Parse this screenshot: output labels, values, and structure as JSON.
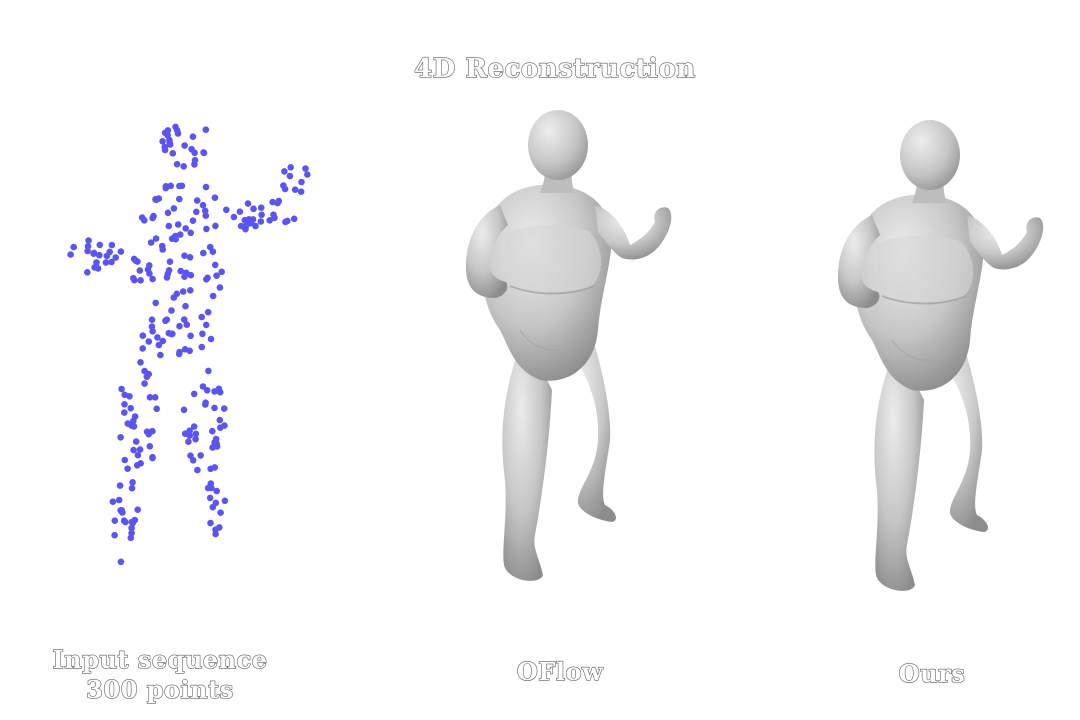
{
  "title": "4D Reconstruction",
  "panels": [
    {
      "caption_lines": [
        "Input sequence",
        "300 points"
      ],
      "point_color": "#5a55f0"
    },
    {
      "caption_lines": [
        "OFlow"
      ]
    },
    {
      "caption_lines": [
        "Ours"
      ]
    }
  ],
  "colors": {
    "points": "#5a55f0",
    "mesh": "#c9c9c9",
    "mesh_shadow": "#8f8f8f"
  }
}
